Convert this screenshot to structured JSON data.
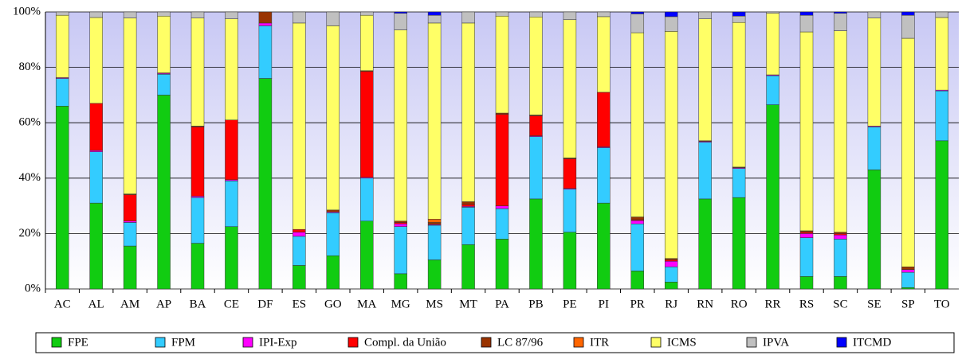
{
  "chart_data": {
    "type": "stacked_bar",
    "categories": [
      "AC",
      "AL",
      "AM",
      "AP",
      "BA",
      "CE",
      "DF",
      "ES",
      "GO",
      "MA",
      "MG",
      "MS",
      "MT",
      "PA",
      "PB",
      "PE",
      "PI",
      "PR",
      "RJ",
      "RN",
      "RO",
      "RR",
      "RS",
      "SC",
      "SE",
      "SP",
      "TO"
    ],
    "series": [
      {
        "name": "FPE",
        "color": "#11cc11",
        "values": [
          66,
          31,
          15.5,
          70,
          16.5,
          22.5,
          76,
          8.5,
          12,
          24.5,
          5.5,
          10.5,
          16,
          18,
          32.5,
          20.5,
          31,
          6.5,
          2.5,
          32.5,
          33,
          66.5,
          4.5,
          4.5,
          43,
          0.5,
          53.5
        ]
      },
      {
        "name": "FPM",
        "color": "#33ccff",
        "values": [
          10,
          18.5,
          8.5,
          7.5,
          16.5,
          16.5,
          19,
          10.5,
          15.5,
          15.5,
          17,
          12.5,
          13.5,
          11,
          22.5,
          15.5,
          20,
          17,
          5.5,
          20.5,
          10.5,
          10.5,
          14,
          13.5,
          15.5,
          5.5,
          18
        ]
      },
      {
        "name": "IPI-Exp",
        "color": "#ff00ff",
        "values": [
          0.3,
          0.5,
          0.5,
          0.3,
          0.5,
          0.4,
          1,
          1.5,
          0.3,
          0.3,
          1,
          0.3,
          0.3,
          1,
          0.3,
          0.3,
          0.3,
          1.2,
          2,
          0.3,
          0.3,
          0.3,
          1.5,
          1.5,
          0.3,
          1,
          0.3
        ]
      },
      {
        "name": "Compl. da União",
        "color": "#ff0000",
        "values": [
          0,
          17,
          9.5,
          0.2,
          25,
          21.6,
          0,
          1,
          0,
          38.2,
          0.5,
          0,
          0.7,
          33,
          7.2,
          10.7,
          19.7,
          0.3,
          0.5,
          0,
          0,
          0,
          0.5,
          0.5,
          0,
          0,
          0
        ]
      },
      {
        "name": "LC 87/96",
        "color": "#993300",
        "values": [
          0,
          0,
          0.3,
          0,
          0.3,
          0,
          4,
          0,
          0.7,
          0.3,
          0.5,
          0.7,
          1,
          0.5,
          0.3,
          0.3,
          0,
          1,
          0.5,
          0.2,
          0.2,
          0,
          0.5,
          0.5,
          0,
          1,
          0
        ]
      },
      {
        "name": "ITR",
        "color": "#ff6600",
        "values": [
          0,
          0,
          0,
          0,
          0,
          0,
          0,
          0,
          0,
          0,
          0,
          1.2,
          0,
          0,
          0,
          0,
          0,
          0,
          0,
          0,
          0,
          0,
          0,
          0,
          0,
          0,
          0
        ]
      },
      {
        "name": "ICMS",
        "color": "#ffff66",
        "values": [
          22.5,
          31,
          63.5,
          20.5,
          39,
          36.5,
          0,
          74.5,
          66.5,
          20,
          69,
          70.8,
          64.5,
          35,
          35.4,
          49.9,
          27.3,
          66.5,
          82,
          44,
          52.2,
          22.2,
          71.8,
          72.7,
          39,
          82.5,
          26.2
        ]
      },
      {
        "name": "IPVA",
        "color": "#c0c0c0",
        "values": [
          1.2,
          2,
          2.2,
          1.5,
          2.2,
          2.5,
          0,
          4,
          5,
          1.2,
          6,
          2.8,
          4,
          1.5,
          1.8,
          2.8,
          1.7,
          6.8,
          5.3,
          2.5,
          2.3,
          0.5,
          6,
          6.3,
          2.2,
          8.3,
          2
        ]
      },
      {
        "name": "ITCMD",
        "color": "#0000ff",
        "values": [
          0,
          0,
          0,
          0,
          0,
          0,
          0,
          0,
          0,
          0,
          0.5,
          1.2,
          0,
          0,
          0,
          0,
          0,
          0.7,
          1.7,
          0,
          1.5,
          0,
          1.2,
          0.5,
          0,
          1.2,
          0
        ]
      }
    ],
    "ylim": [
      0,
      100
    ],
    "yticks": [
      {
        "value": 0,
        "label": "0%"
      },
      {
        "value": 20,
        "label": "20%"
      },
      {
        "value": 40,
        "label": "40%"
      },
      {
        "value": 60,
        "label": "60%"
      },
      {
        "value": 80,
        "label": "80%"
      },
      {
        "value": 100,
        "label": "100%"
      }
    ],
    "grid": true,
    "legend": "bottom"
  }
}
